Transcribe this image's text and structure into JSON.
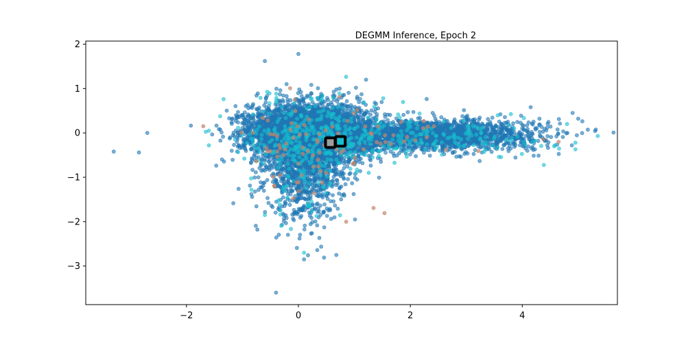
{
  "chart_data": {
    "type": "scatter",
    "title": "DEGMM Inference, Epoch 2",
    "xlabel": "",
    "ylabel": "",
    "xlim": [
      -3.8,
      5.7
    ],
    "ylim": [
      -3.87,
      2.07
    ],
    "xticks": [
      -2,
      0,
      2,
      4
    ],
    "yticks": [
      -3,
      -2,
      -1,
      0,
      1,
      2
    ],
    "grid": false,
    "legend": "none",
    "series": [
      {
        "color": "#1f77b4",
        "alpha": 0.6,
        "marker": "circle",
        "clusters": [
          {
            "cx": 0.3,
            "cy": 0.0,
            "sx": 0.55,
            "sy": 0.35,
            "n": 2600
          },
          {
            "cx": 0.1,
            "cy": -0.7,
            "sx": 0.35,
            "sy": 0.6,
            "n": 1200
          },
          {
            "cx": 2.2,
            "cy": -0.05,
            "sx": 1.05,
            "sy": 0.17,
            "n": 2200
          },
          {
            "cx": -0.2,
            "cy": 0.05,
            "sx": 0.45,
            "sy": 0.25,
            "n": 800
          }
        ],
        "outliers": [
          [
            -3.3,
            -0.42
          ],
          [
            -2.85,
            -0.44
          ],
          [
            -2.7,
            0.0
          ],
          [
            -0.4,
            -3.6
          ],
          [
            0.1,
            -2.85
          ],
          [
            4.15,
            0.58
          ],
          [
            4.9,
            0.45
          ],
          [
            5.0,
            0.32
          ],
          [
            0.0,
            1.78
          ],
          [
            -0.6,
            1.62
          ]
        ]
      },
      {
        "color": "#17becf",
        "alpha": 0.6,
        "marker": "circle",
        "clusters": [
          {
            "cx": 0.3,
            "cy": 0.0,
            "sx": 0.6,
            "sy": 0.4,
            "n": 300
          },
          {
            "cx": 2.3,
            "cy": -0.1,
            "sx": 1.1,
            "sy": 0.2,
            "n": 180
          },
          {
            "cx": 0.1,
            "cy": -0.8,
            "sx": 0.4,
            "sy": 0.6,
            "n": 90
          }
        ],
        "outliers": [
          [
            5.35,
            -0.07
          ],
          [
            4.95,
            -0.22
          ],
          [
            4.95,
            -0.37
          ],
          [
            -1.6,
            0.05
          ],
          [
            -1.6,
            -0.28
          ],
          [
            -0.6,
            -1.85
          ],
          [
            0.1,
            -2.7
          ],
          [
            4.8,
            0.2
          ]
        ]
      },
      {
        "color": "#c2886e",
        "alpha": 0.7,
        "marker": "circle",
        "clusters": [
          {
            "cx": 0.2,
            "cy": -0.3,
            "sx": 0.55,
            "sy": 0.6,
            "n": 70
          },
          {
            "cx": 2.0,
            "cy": -0.1,
            "sx": 0.9,
            "sy": 0.2,
            "n": 25
          }
        ],
        "outliers": [
          [
            4.65,
            -0.2
          ],
          [
            -1.7,
            0.15
          ]
        ]
      }
    ],
    "centroids": [
      {
        "x": 0.57,
        "y": -0.22,
        "fill": "#9e9e9e",
        "edge": "#000000"
      },
      {
        "x": 0.75,
        "y": -0.19,
        "fill": "#17becf",
        "edge": "#000000"
      }
    ]
  }
}
